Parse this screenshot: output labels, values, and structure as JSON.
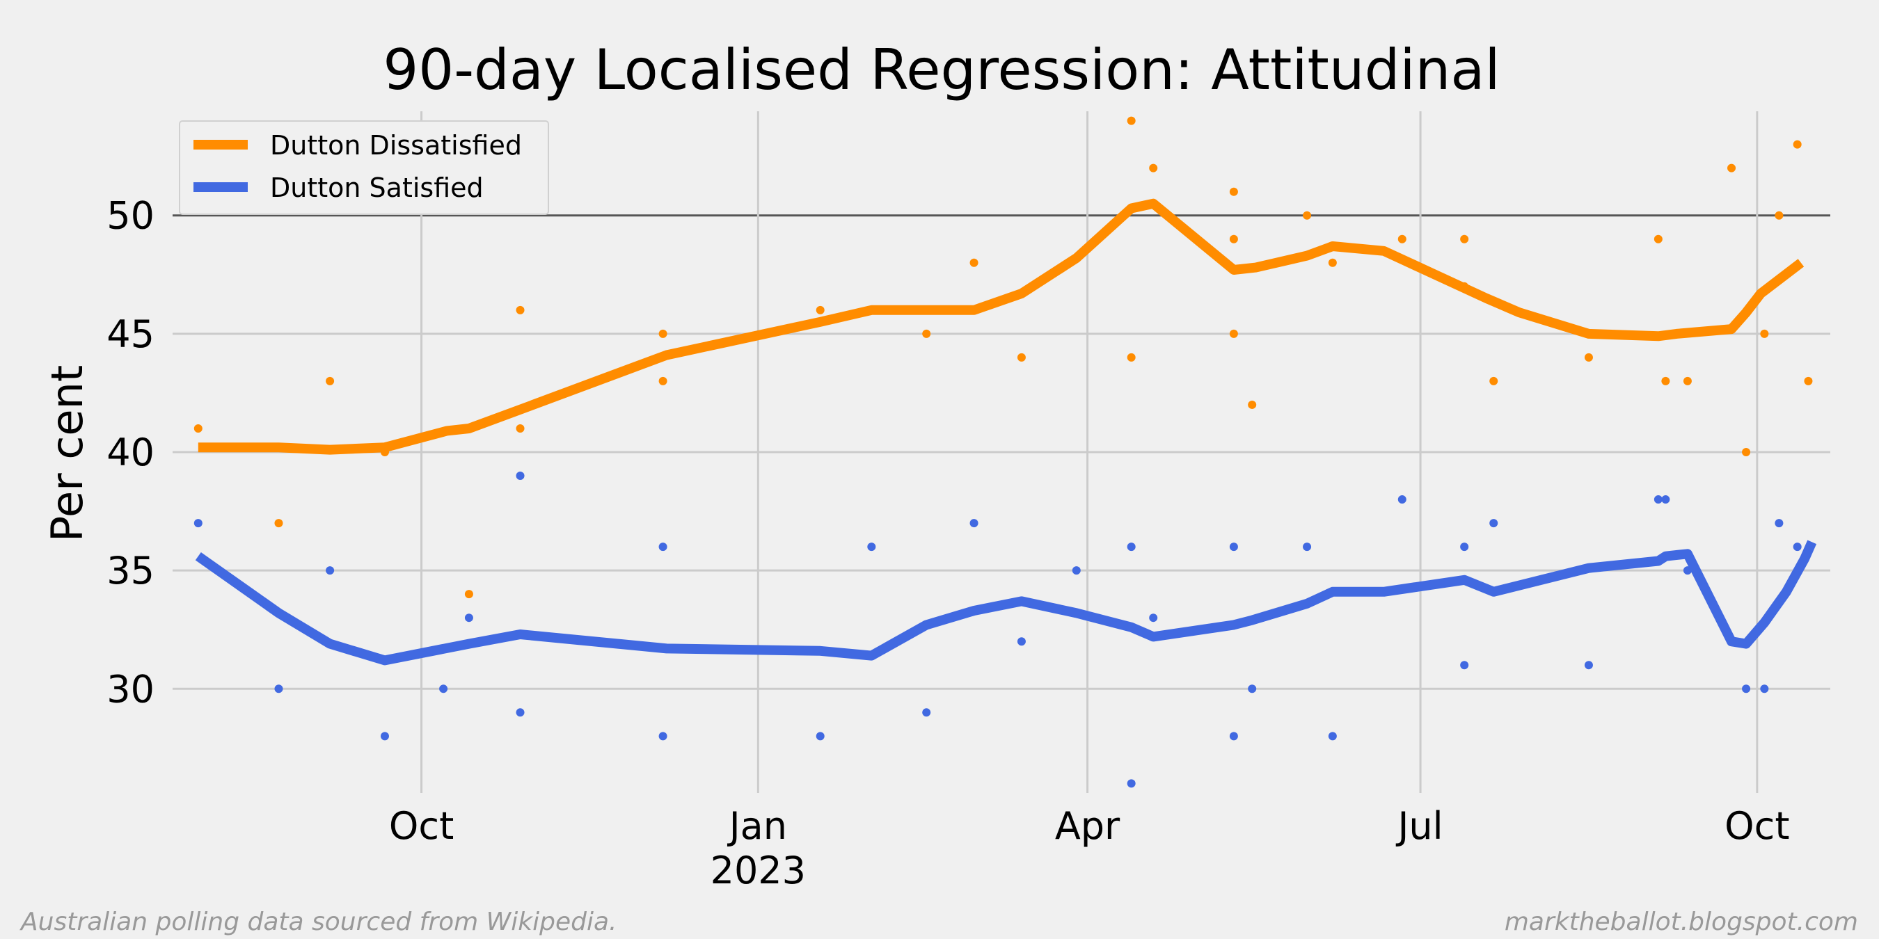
{
  "chart_data": {
    "type": "line",
    "title": "90-day Localised Regression: Attitudinal",
    "ylabel": "Per cent",
    "xlabel": "",
    "xlim": [
      "2022-07-25",
      "2023-10-21"
    ],
    "ylim": [
      25.6,
      54.4
    ],
    "yticks": [
      30,
      35,
      40,
      45,
      50
    ],
    "reference_line": 50,
    "xticks": [
      {
        "date": "2022-10-01",
        "label": "Oct",
        "sublabel": ""
      },
      {
        "date": "2023-01-01",
        "label": "Jan",
        "sublabel": "2023"
      },
      {
        "date": "2023-04-01",
        "label": "Apr",
        "sublabel": ""
      },
      {
        "date": "2023-07-01",
        "label": "Jul",
        "sublabel": ""
      },
      {
        "date": "2023-10-01",
        "label": "Oct",
        "sublabel": ""
      }
    ],
    "grid": true,
    "legend_position": "top-left",
    "series": [
      {
        "name": "Dutton Dissatisfied",
        "color": "#ff8c00",
        "trend": [
          [
            "2022-08-01",
            40.2
          ],
          [
            "2022-08-23",
            40.2
          ],
          [
            "2022-09-06",
            40.1
          ],
          [
            "2022-09-21",
            40.2
          ],
          [
            "2022-10-08",
            40.9
          ],
          [
            "2022-10-14",
            41.0
          ],
          [
            "2022-10-28",
            41.8
          ],
          [
            "2022-12-07",
            44.1
          ],
          [
            "2022-12-22",
            44.6
          ],
          [
            "2023-01-18",
            45.5
          ],
          [
            "2023-02-01",
            46.0
          ],
          [
            "2023-02-16",
            46.0
          ],
          [
            "2023-03-01",
            46.0
          ],
          [
            "2023-03-14",
            46.7
          ],
          [
            "2023-03-29",
            48.2
          ],
          [
            "2023-04-13",
            50.3
          ],
          [
            "2023-04-19",
            50.5
          ],
          [
            "2023-05-11",
            47.7
          ],
          [
            "2023-05-17",
            47.8
          ],
          [
            "2023-05-31",
            48.3
          ],
          [
            "2023-06-07",
            48.7
          ],
          [
            "2023-06-21",
            48.5
          ],
          [
            "2023-07-19",
            46.5
          ],
          [
            "2023-07-28",
            45.9
          ],
          [
            "2023-08-16",
            45.0
          ],
          [
            "2023-09-04",
            44.9
          ],
          [
            "2023-09-09",
            45.0
          ],
          [
            "2023-09-24",
            45.2
          ],
          [
            "2023-09-28",
            45.9
          ],
          [
            "2023-10-02",
            46.7
          ],
          [
            "2023-10-13",
            48.0
          ]
        ],
        "polls": [
          [
            "2022-08-01",
            41
          ],
          [
            "2022-08-23",
            37
          ],
          [
            "2022-09-06",
            43
          ],
          [
            "2022-09-21",
            40
          ],
          [
            "2022-10-14",
            34
          ],
          [
            "2022-10-28",
            46
          ],
          [
            "2022-10-28",
            41
          ],
          [
            "2022-12-06",
            45
          ],
          [
            "2022-12-06",
            43
          ],
          [
            "2023-01-18",
            46
          ],
          [
            "2023-02-16",
            45
          ],
          [
            "2023-03-01",
            48
          ],
          [
            "2023-03-14",
            44
          ],
          [
            "2023-04-13",
            54
          ],
          [
            "2023-04-13",
            44
          ],
          [
            "2023-04-19",
            52
          ],
          [
            "2023-05-11",
            51
          ],
          [
            "2023-05-11",
            49
          ],
          [
            "2023-05-11",
            45
          ],
          [
            "2023-05-16",
            42
          ],
          [
            "2023-05-31",
            50
          ],
          [
            "2023-06-07",
            48
          ],
          [
            "2023-06-26",
            49
          ],
          [
            "2023-07-13",
            49
          ],
          [
            "2023-07-13",
            47
          ],
          [
            "2023-07-21",
            43
          ],
          [
            "2023-08-16",
            44
          ],
          [
            "2023-09-04",
            49
          ],
          [
            "2023-09-06",
            43
          ],
          [
            "2023-09-12",
            43
          ],
          [
            "2023-09-24",
            52
          ],
          [
            "2023-09-28",
            40
          ],
          [
            "2023-10-03",
            45
          ],
          [
            "2023-10-07",
            50
          ],
          [
            "2023-10-12",
            53
          ],
          [
            "2023-10-15",
            43
          ]
        ]
      },
      {
        "name": "Dutton Satisfied",
        "color": "#4169e1",
        "trend": [
          [
            "2022-08-01",
            35.6
          ],
          [
            "2022-08-23",
            33.2
          ],
          [
            "2022-09-06",
            31.9
          ],
          [
            "2022-09-21",
            31.2
          ],
          [
            "2022-10-14",
            31.9
          ],
          [
            "2022-10-28",
            32.3
          ],
          [
            "2022-12-07",
            31.7
          ],
          [
            "2023-01-18",
            31.6
          ],
          [
            "2023-02-01",
            31.4
          ],
          [
            "2023-02-16",
            32.7
          ],
          [
            "2023-03-01",
            33.3
          ],
          [
            "2023-03-14",
            33.7
          ],
          [
            "2023-03-29",
            33.2
          ],
          [
            "2023-04-13",
            32.6
          ],
          [
            "2023-04-19",
            32.2
          ],
          [
            "2023-05-11",
            32.7
          ],
          [
            "2023-05-16",
            32.9
          ],
          [
            "2023-05-31",
            33.6
          ],
          [
            "2023-06-07",
            34.1
          ],
          [
            "2023-06-21",
            34.1
          ],
          [
            "2023-07-13",
            34.6
          ],
          [
            "2023-07-21",
            34.1
          ],
          [
            "2023-08-16",
            35.1
          ],
          [
            "2023-09-04",
            35.4
          ],
          [
            "2023-09-06",
            35.6
          ],
          [
            "2023-09-12",
            35.7
          ],
          [
            "2023-09-24",
            32.0
          ],
          [
            "2023-09-28",
            31.9
          ],
          [
            "2023-10-03",
            32.8
          ],
          [
            "2023-10-09",
            34.1
          ],
          [
            "2023-10-14",
            35.5
          ],
          [
            "2023-10-16",
            36.2
          ]
        ],
        "polls": [
          [
            "2022-08-01",
            37
          ],
          [
            "2022-08-23",
            30
          ],
          [
            "2022-09-06",
            35
          ],
          [
            "2022-09-21",
            28
          ],
          [
            "2022-10-07",
            30
          ],
          [
            "2022-10-14",
            33
          ],
          [
            "2022-10-28",
            39
          ],
          [
            "2022-10-28",
            29
          ],
          [
            "2022-12-06",
            36
          ],
          [
            "2022-12-06",
            28
          ],
          [
            "2023-01-18",
            28
          ],
          [
            "2023-02-01",
            36
          ],
          [
            "2023-02-16",
            29
          ],
          [
            "2023-03-01",
            37
          ],
          [
            "2023-03-14",
            32
          ],
          [
            "2023-03-29",
            35
          ],
          [
            "2023-04-13",
            36
          ],
          [
            "2023-04-13",
            26
          ],
          [
            "2023-04-19",
            33
          ],
          [
            "2023-05-11",
            36
          ],
          [
            "2023-05-11",
            28
          ],
          [
            "2023-05-16",
            30
          ],
          [
            "2023-05-31",
            36
          ],
          [
            "2023-06-07",
            28
          ],
          [
            "2023-06-26",
            38
          ],
          [
            "2023-07-13",
            36
          ],
          [
            "2023-07-13",
            31
          ],
          [
            "2023-07-21",
            37
          ],
          [
            "2023-08-16",
            31
          ],
          [
            "2023-09-04",
            38
          ],
          [
            "2023-09-06",
            38
          ],
          [
            "2023-09-12",
            35
          ],
          [
            "2023-09-28",
            30
          ],
          [
            "2023-10-03",
            30
          ],
          [
            "2023-10-07",
            37
          ],
          [
            "2023-10-12",
            36
          ]
        ]
      }
    ]
  },
  "footer": {
    "left": "Australian polling data sourced from Wikipedia.",
    "right": "marktheballot.blogspot.com"
  }
}
